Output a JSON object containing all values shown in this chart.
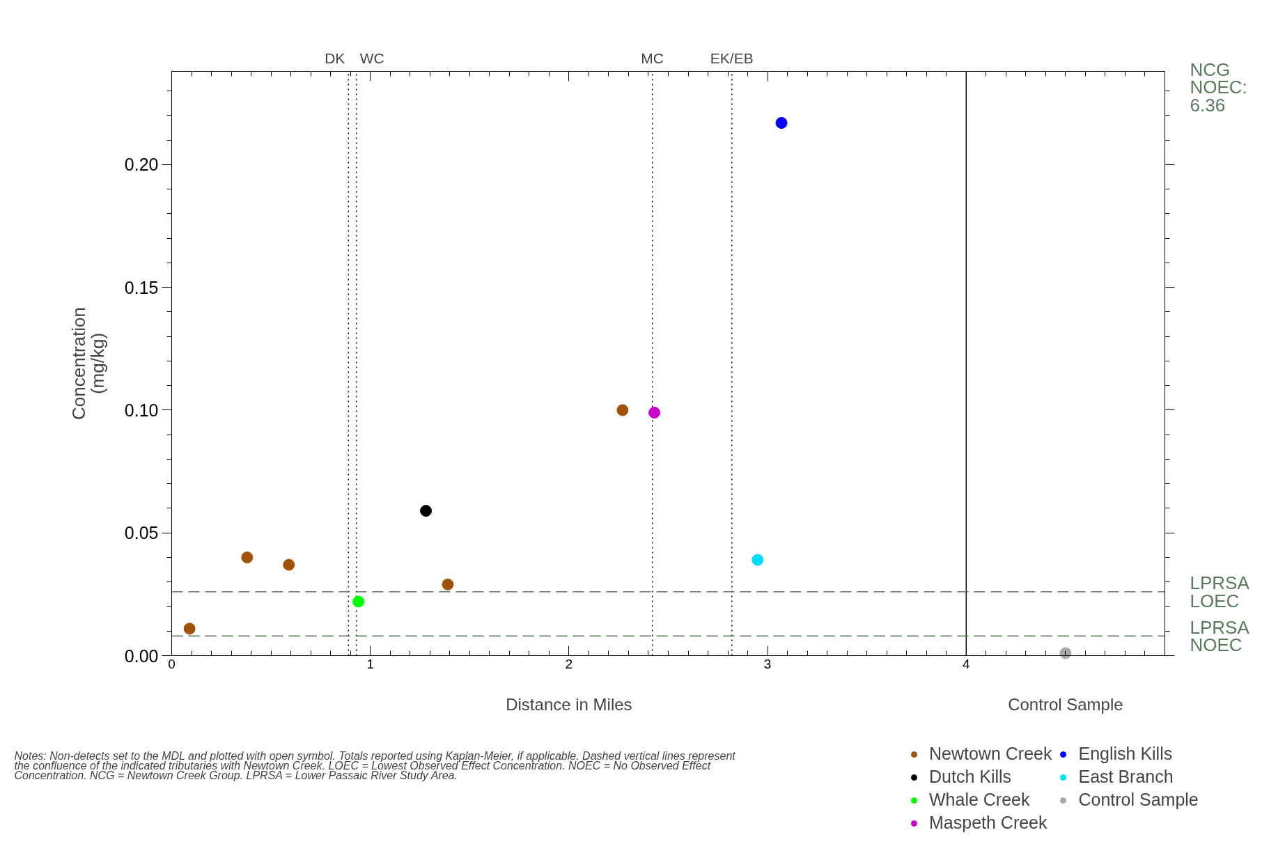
{
  "chart_data": {
    "type": "scatter",
    "xlabel": "Distance in Miles",
    "ylabel": "Concentration\n(mg/kg)",
    "xlim": [
      0,
      5
    ],
    "xticks": [
      0,
      1,
      2,
      3,
      4
    ],
    "ylim": [
      0,
      0.238
    ],
    "yticks": [
      {
        "value": 0,
        "label": "0.00"
      },
      {
        "value": 0.05,
        "label": "0.05"
      },
      {
        "value": 0.1,
        "label": "0.10"
      },
      {
        "value": 0.15,
        "label": "0.15"
      },
      {
        "value": 0.2,
        "label": "0.20"
      }
    ],
    "grid": false,
    "marker": "circle",
    "legend": "bottom right",
    "series": [
      {
        "name": "Newtown Creek",
        "color": "#a0520a",
        "x": [
          0.09,
          0.38,
          0.59,
          1.39,
          2.27
        ],
        "values": [
          0.011,
          0.04,
          0.037,
          0.029,
          0.1
        ]
      },
      {
        "name": "Dutch Kills",
        "color": "#000000",
        "x": [
          1.28
        ],
        "values": [
          0.059
        ]
      },
      {
        "name": "Whale Creek",
        "color": "#00ff00",
        "x": [
          0.94
        ],
        "values": [
          0.022
        ]
      },
      {
        "name": "Maspeth Creek",
        "color": "#cc00cc",
        "x": [
          2.43
        ],
        "values": [
          0.099
        ]
      },
      {
        "name": "English Kills",
        "color": "#0000ff",
        "x": [
          3.07
        ],
        "values": [
          0.217
        ]
      },
      {
        "name": "East Branch",
        "color": "#00ddff",
        "x": [
          2.95
        ],
        "values": [
          0.039
        ]
      },
      {
        "name": "Control Sample",
        "color": "#aaaaaa",
        "x": [
          4.5
        ],
        "values": [
          0.001
        ]
      }
    ],
    "ref_lines": [
      {
        "axis": "x",
        "value": 0.89,
        "label": "DK",
        "line_style": "dotted",
        "color": "#000000"
      },
      {
        "axis": "x",
        "value": 0.93,
        "label": "WC",
        "line_style": "dotted",
        "color": "#000000"
      },
      {
        "axis": "x",
        "value": 2.42,
        "label": "MC",
        "line_style": "dotted",
        "color": "#000000"
      },
      {
        "axis": "x",
        "value": 2.82,
        "label": "EK/EB",
        "line_style": "dotted",
        "color": "#000000"
      },
      {
        "axis": "x",
        "value": 4,
        "label": null,
        "line_style": "solid",
        "color": "#000000"
      },
      {
        "axis": "y",
        "value": 0.026,
        "label": "LPRSA LOEC",
        "line_style": "dashed",
        "color": "#5a7a5a"
      },
      {
        "axis": "y",
        "value": 0.008,
        "label": "LPRSA NOEC",
        "line_style": "dashed",
        "color": "#5a7a5a"
      }
    ],
    "annotations": [
      "NCG NOEC: 6.36",
      "Control Sample",
      "Notes: Non-detects set to the MDL and plotted with open symbol. Totals reported using Kaplan-Meier, if applicable. Dashed vertical lines represent the confluence of the indicated tributaries with Newtown Creek. LOEC = Lowest Observed Effect Concentration. NOEC = No Observed Effect Concentration. NCG = Newtown Creek Group. LPRSA = Lower Passaic River Study Area."
    ]
  }
}
